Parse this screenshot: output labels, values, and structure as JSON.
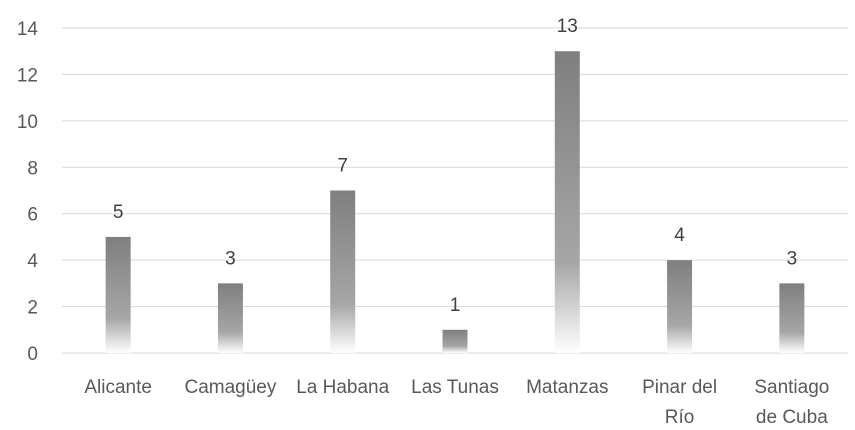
{
  "chart_data": {
    "type": "bar",
    "title": "",
    "xlabel": "",
    "ylabel": "",
    "categories": [
      [
        "Alicante"
      ],
      [
        "Camagüey"
      ],
      [
        "La Habana"
      ],
      [
        "Las Tunas"
      ],
      [
        "Matanzas"
      ],
      [
        "Pinar del",
        "Río"
      ],
      [
        "Santiago",
        "de Cuba"
      ]
    ],
    "values": [
      5,
      3,
      7,
      1,
      13,
      4,
      3
    ],
    "ylim": [
      0,
      14
    ],
    "yticks": [
      0,
      2,
      4,
      6,
      8,
      10,
      12,
      14
    ],
    "grid": true,
    "legend": "none",
    "data_labels": true,
    "colors": {
      "bar_top": "#7f7f7f",
      "bar_mid": "#a6a6a6",
      "bar_bottom": "#ffffff",
      "grid": "#d9d9d9",
      "text": "#595959"
    }
  }
}
